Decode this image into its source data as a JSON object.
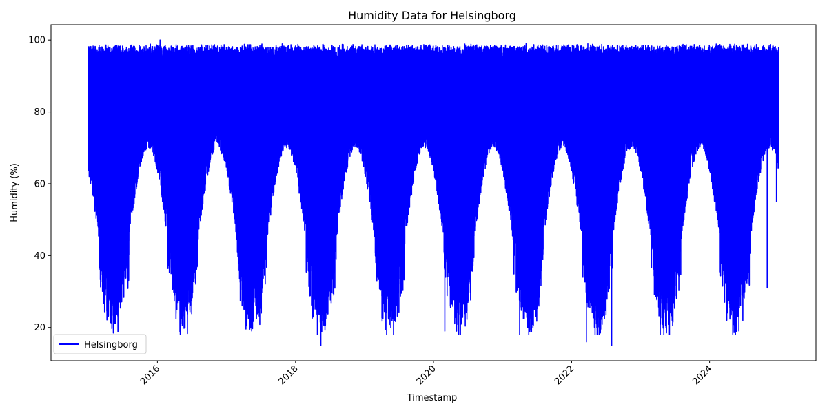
{
  "chart_data": {
    "type": "line",
    "title": "Humidity Data for Helsingborg",
    "xlabel": "Timestamp",
    "ylabel": "Humidity (%)",
    "x_range": [
      "2014-06-17",
      "2025-07-17"
    ],
    "ylim": [
      10.75,
      104.25
    ],
    "x_ticks": [
      {
        "date": "2016-01-01",
        "label": "2016"
      },
      {
        "date": "2018-01-01",
        "label": "2018"
      },
      {
        "date": "2020-01-01",
        "label": "2020"
      },
      {
        "date": "2022-01-01",
        "label": "2022"
      },
      {
        "date": "2024-01-01",
        "label": "2024"
      }
    ],
    "y_ticks": [
      20,
      40,
      60,
      80,
      100
    ],
    "grid": false,
    "legend_position": "lower-left",
    "series": [
      {
        "name": "Helsingborg",
        "color": "#0000ff",
        "data_start": "2015-01-01",
        "data_end": "2025-01-01",
        "humid_season_range": [
          70,
          99
        ],
        "dry_season_range": [
          15,
          99
        ],
        "minimum": 15,
        "maximum": 100,
        "sample_points": [
          {
            "date": "2015-01-05",
            "y": 62
          },
          {
            "date": "2015-01-20",
            "y": 97
          },
          {
            "date": "2015-03-01",
            "y": 45
          },
          {
            "date": "2015-04-01",
            "y": 29
          },
          {
            "date": "2016-01-15",
            "y": 100
          },
          {
            "date": "2016-05-01",
            "y": 18
          },
          {
            "date": "2017-04-15",
            "y": 22
          },
          {
            "date": "2018-05-15",
            "y": 15
          },
          {
            "date": "2019-05-20",
            "y": 20
          },
          {
            "date": "2020-03-01",
            "y": 19
          },
          {
            "date": "2021-04-01",
            "y": 18
          },
          {
            "date": "2022-03-20",
            "y": 16
          },
          {
            "date": "2022-08-01",
            "y": 15
          },
          {
            "date": "2023-04-15",
            "y": 18
          },
          {
            "date": "2024-04-01",
            "y": 22
          },
          {
            "date": "2024-11-01",
            "y": 31
          },
          {
            "date": "2024-12-20",
            "y": 55
          },
          {
            "date": "2025-01-01",
            "y": 95
          }
        ]
      }
    ]
  }
}
